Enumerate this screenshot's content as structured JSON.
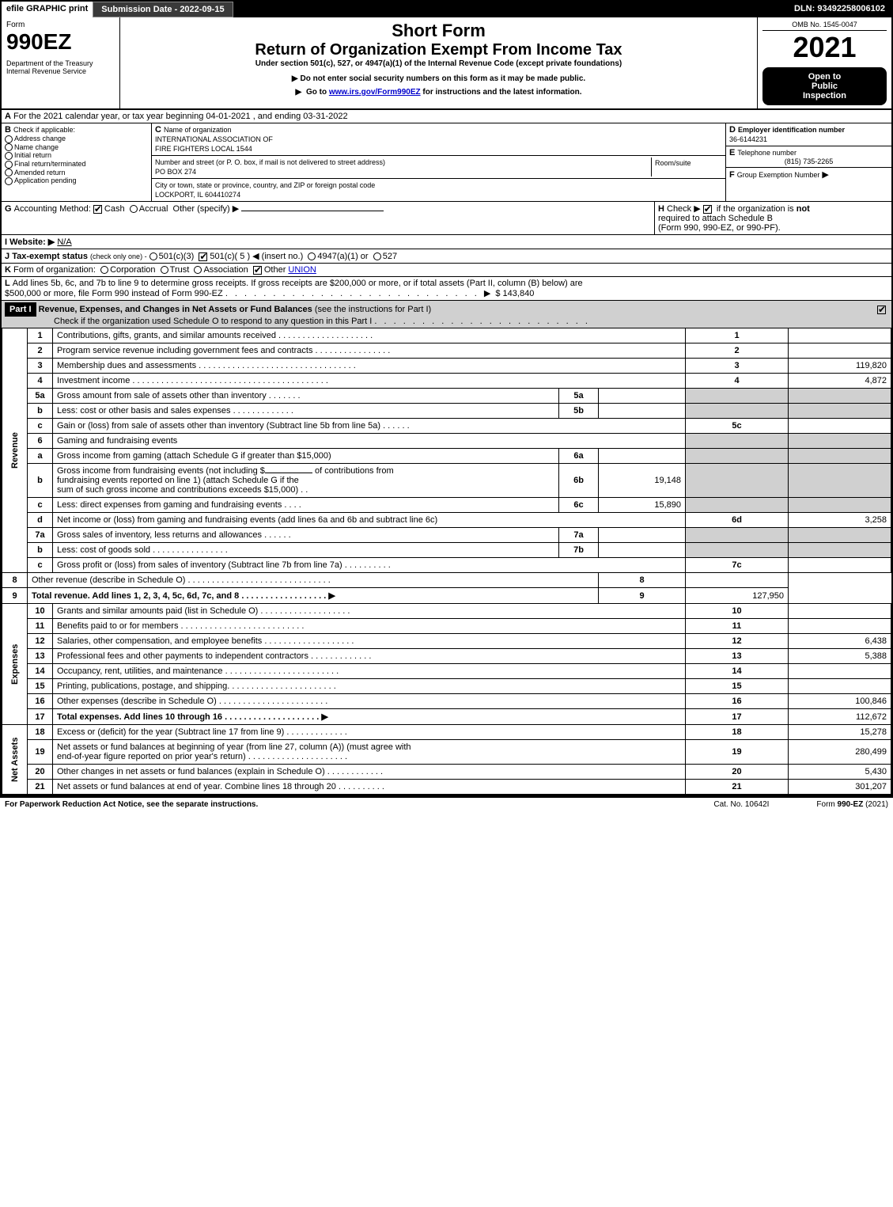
{
  "topbar": {
    "efile": "efile GRAPHIC print",
    "subdate": "Submission Date - 2022-09-15",
    "dln": "DLN: 93492258006102"
  },
  "header": {
    "form_word": "Form",
    "form_no": "990EZ",
    "dept1": "Department of the Treasury",
    "dept2": "Internal Revenue Service",
    "short": "Short Form",
    "title": "Return of Organization Exempt From Income Tax",
    "under": "Under section 501(c), 527, or 4947(a)(1) of the Internal Revenue Code (except private foundations)",
    "note1": "Do not enter social security numbers on this form as it may be made public.",
    "note2_pre": "Go to ",
    "note2_link": "www.irs.gov/Form990EZ",
    "note2_post": " for instructions and the latest information.",
    "omb": "OMB No. 1545-0047",
    "year": "2021",
    "open1": "Open to",
    "open2": "Public",
    "open3": "Inspection"
  },
  "sectionA": {
    "a_text": "For the 2021 calendar year, or tax year beginning 04-01-2021 , and ending 03-31-2022",
    "b_label": "Check if applicable:",
    "b_opts": [
      "Address change",
      "Name change",
      "Initial return",
      "Final return/terminated",
      "Amended return",
      "Application pending"
    ],
    "c_label": "Name of organization",
    "org1": "INTERNATIONAL ASSOCIATION OF",
    "org2": "FIRE FIGHTERS LOCAL 1544",
    "addr_label": "Number and street (or P. O. box, if mail is not delivered to street address)",
    "room_label": "Room/suite",
    "addr": "PO BOX 274",
    "city_label": "City or town, state or province, country, and ZIP or foreign postal code",
    "city": "LOCKPORT, IL  604410274",
    "d_label": "Employer identification number",
    "d_val": "36-6144231",
    "e_label": "Telephone number",
    "e_val": "(815) 735-2265",
    "f_label": "Group Exemption Number",
    "f_arrow": "▶"
  },
  "sectionG": {
    "g_label": "Accounting Method:",
    "g_cash": "Cash",
    "g_accrual": "Accrual",
    "g_other": "Other (specify) ▶",
    "h_label": "Check ▶",
    "h_text1": "if the organization is ",
    "h_not": "not",
    "h_text2": "required to attach Schedule B",
    "h_text3": "(Form 990, 990-EZ, or 990-PF).",
    "i_label": "Website: ▶",
    "i_val": "N/A",
    "j_label": "Tax-exempt status",
    "j_note": "(check only one) -",
    "j_1": "501(c)(3)",
    "j_2": "501(c)( 5 ) ◀ (insert no.)",
    "j_3": "4947(a)(1) or",
    "j_4": "527",
    "k_label": "Form of organization:",
    "k_1": "Corporation",
    "k_2": "Trust",
    "k_3": "Association",
    "k_4": "Other",
    "k_4v": "UNION",
    "l_text1": "Add lines 5b, 6c, and 7b to line 9 to determine gross receipts. If gross receipts are $200,000 or more, or if total assets (Part II, column (B) below) are",
    "l_text2": "$500,000 or more, file Form 990 instead of Form 990-EZ",
    "l_dots": ". . . . . . . . . . . . . . . . . . . . . . . . . . . ▶",
    "l_amt": "$ 143,840"
  },
  "part1": {
    "tag": "Part I",
    "title": "Revenue, Expenses, and Changes in Net Assets or Fund Balances",
    "title_note": " (see the instructions for Part I)",
    "check_text": "Check if the organization used Schedule O to respond to any question in this Part I",
    "check_dots": ". . . . . . . . . . . . . . . . . . . . . . ."
  },
  "vlabels": {
    "rev": "Revenue",
    "exp": "Expenses",
    "net": "Net Assets"
  },
  "lines": {
    "l1": {
      "n": "1",
      "t": "Contributions, gifts, grants, and similar amounts received . . . . . . . . . . . . . . . . . . . .",
      "box": "1",
      "amt": ""
    },
    "l2": {
      "n": "2",
      "t": "Program service revenue including government fees and contracts . . . . . . . . . . . . . . . .",
      "box": "2",
      "amt": ""
    },
    "l3": {
      "n": "3",
      "t": "Membership dues and assessments . . . . . . . . . . . . . . . . . . . . . . . . . . . . . . . . .",
      "box": "3",
      "amt": "119,820"
    },
    "l4": {
      "n": "4",
      "t": "Investment income . . . . . . . . . . . . . . . . . . . . . . . . . . . . . . . . . . . . . . . . .",
      "box": "4",
      "amt": "4,872"
    },
    "l5a": {
      "n": "5a",
      "t": "Gross amount from sale of assets other than inventory . . . . . . .",
      "sub": "5a",
      "sv": ""
    },
    "l5b": {
      "n": "b",
      "t": "Less: cost or other basis and sales expenses . . . . . . . . . . . . .",
      "sub": "5b",
      "sv": ""
    },
    "l5c": {
      "n": "c",
      "t": "Gain or (loss) from sale of assets other than inventory (Subtract line 5b from line 5a) . . . . . .",
      "box": "5c",
      "amt": ""
    },
    "l6": {
      "n": "6",
      "t": "Gaming and fundraising events"
    },
    "l6a": {
      "n": "a",
      "t": "Gross income from gaming (attach Schedule G if greater than $15,000)",
      "sub": "6a",
      "sv": ""
    },
    "l6b": {
      "n": "b",
      "t1": "Gross income from fundraising events (not including $",
      "t2": "of contributions from",
      "t3": "fundraising events reported on line 1) (attach Schedule G if the",
      "t4": "sum of such gross income and contributions exceeds $15,000)   . .",
      "sub": "6b",
      "sv": "19,148"
    },
    "l6c": {
      "n": "c",
      "t": "Less: direct expenses from gaming and fundraising events   . . . .",
      "sub": "6c",
      "sv": "15,890"
    },
    "l6d": {
      "n": "d",
      "t": "Net income or (loss) from gaming and fundraising events (add lines 6a and 6b and subtract line 6c)",
      "box": "6d",
      "amt": "3,258"
    },
    "l7a": {
      "n": "7a",
      "t": "Gross sales of inventory, less returns and allowances . . . . . .",
      "sub": "7a",
      "sv": ""
    },
    "l7b": {
      "n": "b",
      "t": "Less: cost of goods sold         . . . . . . . . . . . . . . . .",
      "sub": "7b",
      "sv": ""
    },
    "l7c": {
      "n": "c",
      "t": "Gross profit or (loss) from sales of inventory (Subtract line 7b from line 7a) . . . . . . . . . .",
      "box": "7c",
      "amt": ""
    },
    "l8": {
      "n": "8",
      "t": "Other revenue (describe in Schedule O) . . . . . . . . . . . . . . . . . . . . . . . . . . . . . .",
      "box": "8",
      "amt": ""
    },
    "l9": {
      "n": "9",
      "t": "Total revenue. Add lines 1, 2, 3, 4, 5c, 6d, 7c, and 8  . . . . . . . . . . . . . . . . . .   ▶",
      "box": "9",
      "amt": "127,950"
    },
    "l10": {
      "n": "10",
      "t": "Grants and similar amounts paid (list in Schedule O) . . . . . . . . . . . . . . . . . . .",
      "box": "10",
      "amt": ""
    },
    "l11": {
      "n": "11",
      "t": "Benefits paid to or for members       . . . . . . . . . . . . . . . . . . . . . . . . . .",
      "box": "11",
      "amt": ""
    },
    "l12": {
      "n": "12",
      "t": "Salaries, other compensation, and employee benefits . . . . . . . . . . . . . . . . . . .",
      "box": "12",
      "amt": "6,438"
    },
    "l13": {
      "n": "13",
      "t": "Professional fees and other payments to independent contractors . . . . . . . . . . . . .",
      "box": "13",
      "amt": "5,388"
    },
    "l14": {
      "n": "14",
      "t": "Occupancy, rent, utilities, and maintenance . . . . . . . . . . . . . . . . . . . . . . . .",
      "box": "14",
      "amt": ""
    },
    "l15": {
      "n": "15",
      "t": "Printing, publications, postage, and shipping. . . . . . . . . . . . . . . . . . . . . . .",
      "box": "15",
      "amt": ""
    },
    "l16": {
      "n": "16",
      "t": "Other expenses (describe in Schedule O)     . . . . . . . . . . . . . . . . . . . . . . .",
      "box": "16",
      "amt": "100,846"
    },
    "l17": {
      "n": "17",
      "t": "Total expenses. Add lines 10 through 16      . . . . . . . . . . . . . . . . . . . .   ▶",
      "box": "17",
      "amt": "112,672"
    },
    "l18": {
      "n": "18",
      "t": "Excess or (deficit) for the year (Subtract line 17 from line 9)       . . . . . . . . . . . . .",
      "box": "18",
      "amt": "15,278"
    },
    "l19": {
      "n": "19",
      "t1": "Net assets or fund balances at beginning of year (from line 27, column (A)) (must agree with",
      "t2": "end-of-year figure reported on prior year's return) . . . . . . . . . . . . . . . . . . . . .",
      "box": "19",
      "amt": "280,499"
    },
    "l20": {
      "n": "20",
      "t": "Other changes in net assets or fund balances (explain in Schedule O) . . . . . . . . . . . .",
      "box": "20",
      "amt": "5,430"
    },
    "l21": {
      "n": "21",
      "t": "Net assets or fund balances at end of year. Combine lines 18 through 20 . . . . . . . . . .",
      "box": "21",
      "amt": "301,207"
    }
  },
  "footer": {
    "pra": "For Paperwork Reduction Act Notice, see the separate instructions.",
    "cat": "Cat. No. 10642I",
    "form": "Form 990-EZ (2021)"
  },
  "colors": {
    "black": "#000000",
    "grey": "#d0d0d0",
    "link": "#0000cc"
  }
}
